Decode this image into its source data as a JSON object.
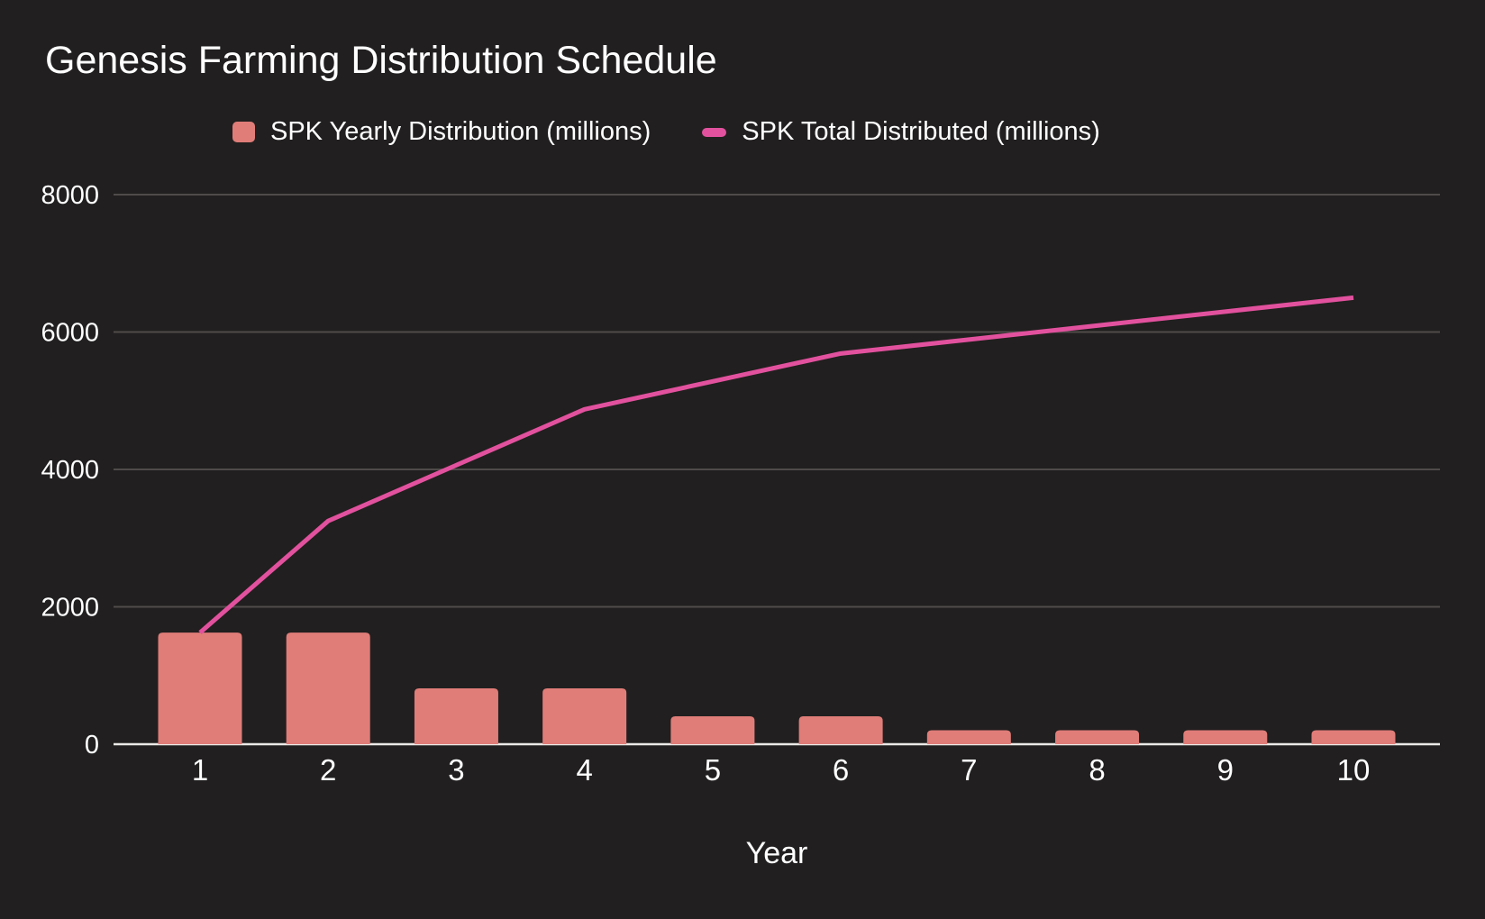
{
  "chart_data": {
    "type": "combo-bar-line",
    "title": "Genesis Farming Distribution Schedule",
    "xlabel": "Year",
    "ylabel": "",
    "categories": [
      "1",
      "2",
      "3",
      "4",
      "5",
      "6",
      "7",
      "8",
      "9",
      "10"
    ],
    "series": [
      {
        "name": "SPK Yearly Distribution (millions)",
        "type": "bar",
        "color": "#e07d79",
        "values": [
          1625,
          1625,
          812.5,
          812.5,
          406.25,
          406.25,
          203.125,
          203.125,
          203.125,
          203.125
        ]
      },
      {
        "name": "SPK Total Distributed (millions)",
        "type": "line",
        "color": "#e2519e",
        "values": [
          1625,
          3250,
          4062.5,
          4875,
          5281.25,
          5687.5,
          5890.625,
          6093.75,
          6296.875,
          6500
        ]
      }
    ],
    "ylim": [
      0,
      8000
    ],
    "yticks": [
      0,
      2000,
      4000,
      6000,
      8000
    ],
    "grid": true,
    "legend_position": "top",
    "colors": {
      "background": "#211f1f",
      "grid": "#4f4b4a",
      "axis": "#eceae8",
      "text": "#ffffff"
    }
  }
}
